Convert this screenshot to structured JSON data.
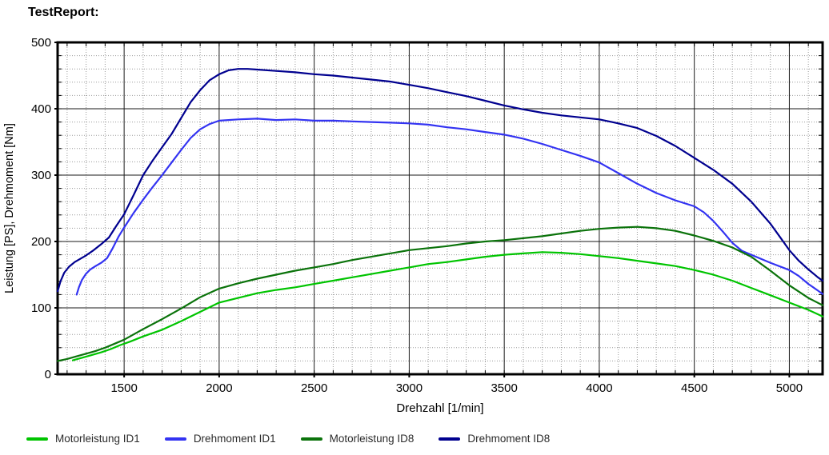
{
  "page": {
    "title": "TestReport:"
  },
  "chart_data": {
    "type": "line",
    "title": "TestReport:",
    "xlabel": "Drehzahl [1/min]",
    "ylabel": "Leistung [PS], Drehmoment [Nm]",
    "xlim": [
      1150,
      5175
    ],
    "ylim": [
      0,
      500
    ],
    "x_major_ticks": [
      1500,
      2000,
      2500,
      3000,
      3500,
      4000,
      4500,
      5000
    ],
    "x_minor_step": 100,
    "y_major_ticks": [
      0,
      100,
      200,
      300,
      400,
      500
    ],
    "y_minor_step": 20,
    "grid": {
      "major": "solid",
      "minor": "dotted"
    },
    "legend_position": "bottom",
    "frame_color": "#000000",
    "major_grid_color": "#1a1a1a",
    "minor_grid_color": "#999999",
    "series": [
      {
        "name": "Motorleistung ID1",
        "color": "#00c400",
        "points": [
          [
            1230,
            21
          ],
          [
            1280,
            25
          ],
          [
            1330,
            29
          ],
          [
            1380,
            33
          ],
          [
            1430,
            38
          ],
          [
            1480,
            44
          ],
          [
            1530,
            49
          ],
          [
            1600,
            57
          ],
          [
            1700,
            67
          ],
          [
            1800,
            80
          ],
          [
            1900,
            94
          ],
          [
            2000,
            108
          ],
          [
            2100,
            115
          ],
          [
            2200,
            122
          ],
          [
            2300,
            127
          ],
          [
            2400,
            131
          ],
          [
            2500,
            136
          ],
          [
            2600,
            141
          ],
          [
            2700,
            146
          ],
          [
            2800,
            151
          ],
          [
            2900,
            156
          ],
          [
            3000,
            161
          ],
          [
            3100,
            166
          ],
          [
            3200,
            169
          ],
          [
            3300,
            173
          ],
          [
            3400,
            177
          ],
          [
            3500,
            180
          ],
          [
            3600,
            182
          ],
          [
            3700,
            184
          ],
          [
            3800,
            183
          ],
          [
            3900,
            181
          ],
          [
            4000,
            178
          ],
          [
            4100,
            175
          ],
          [
            4200,
            171
          ],
          [
            4300,
            167
          ],
          [
            4400,
            163
          ],
          [
            4500,
            157
          ],
          [
            4600,
            150
          ],
          [
            4700,
            141
          ],
          [
            4800,
            130
          ],
          [
            4900,
            119
          ],
          [
            5000,
            108
          ],
          [
            5100,
            97
          ],
          [
            5175,
            87
          ]
        ]
      },
      {
        "name": "Drehmoment ID1",
        "color": "#3333f2",
        "points": [
          [
            1250,
            120
          ],
          [
            1262,
            131
          ],
          [
            1278,
            142
          ],
          [
            1298,
            151
          ],
          [
            1322,
            158
          ],
          [
            1350,
            163
          ],
          [
            1380,
            168
          ],
          [
            1410,
            175
          ],
          [
            1440,
            190
          ],
          [
            1470,
            207
          ],
          [
            1500,
            221
          ],
          [
            1550,
            243
          ],
          [
            1600,
            263
          ],
          [
            1650,
            282
          ],
          [
            1700,
            300
          ],
          [
            1750,
            319
          ],
          [
            1800,
            338
          ],
          [
            1850,
            356
          ],
          [
            1900,
            369
          ],
          [
            1950,
            377
          ],
          [
            2000,
            382
          ],
          [
            2100,
            384
          ],
          [
            2200,
            385
          ],
          [
            2300,
            383
          ],
          [
            2400,
            384
          ],
          [
            2500,
            382
          ],
          [
            2600,
            382
          ],
          [
            2700,
            381
          ],
          [
            2800,
            380
          ],
          [
            2900,
            379
          ],
          [
            3000,
            378
          ],
          [
            3100,
            376
          ],
          [
            3200,
            372
          ],
          [
            3300,
            369
          ],
          [
            3400,
            365
          ],
          [
            3500,
            361
          ],
          [
            3600,
            355
          ],
          [
            3700,
            347
          ],
          [
            3800,
            338
          ],
          [
            3900,
            329
          ],
          [
            4000,
            319
          ],
          [
            4100,
            303
          ],
          [
            4200,
            287
          ],
          [
            4300,
            273
          ],
          [
            4400,
            262
          ],
          [
            4500,
            253
          ],
          [
            4550,
            244
          ],
          [
            4600,
            231
          ],
          [
            4650,
            215
          ],
          [
            4700,
            198
          ],
          [
            4750,
            186
          ],
          [
            4800,
            180
          ],
          [
            4900,
            168
          ],
          [
            5000,
            157
          ],
          [
            5050,
            148
          ],
          [
            5100,
            136
          ],
          [
            5150,
            126
          ],
          [
            5175,
            121
          ]
        ]
      },
      {
        "name": "Motorleistung ID8",
        "color": "#0b730b",
        "points": [
          [
            1150,
            20
          ],
          [
            1200,
            23
          ],
          [
            1250,
            27
          ],
          [
            1300,
            31
          ],
          [
            1350,
            35
          ],
          [
            1400,
            40
          ],
          [
            1450,
            46
          ],
          [
            1500,
            52
          ],
          [
            1600,
            68
          ],
          [
            1700,
            83
          ],
          [
            1800,
            99
          ],
          [
            1900,
            116
          ],
          [
            2000,
            129
          ],
          [
            2100,
            137
          ],
          [
            2200,
            144
          ],
          [
            2300,
            150
          ],
          [
            2400,
            156
          ],
          [
            2500,
            161
          ],
          [
            2600,
            166
          ],
          [
            2700,
            172
          ],
          [
            2800,
            177
          ],
          [
            2900,
            182
          ],
          [
            3000,
            187
          ],
          [
            3100,
            190
          ],
          [
            3200,
            193
          ],
          [
            3300,
            197
          ],
          [
            3400,
            200
          ],
          [
            3500,
            202
          ],
          [
            3600,
            205
          ],
          [
            3700,
            208
          ],
          [
            3800,
            212
          ],
          [
            3900,
            216
          ],
          [
            4000,
            219
          ],
          [
            4100,
            221
          ],
          [
            4200,
            222
          ],
          [
            4300,
            220
          ],
          [
            4400,
            216
          ],
          [
            4500,
            209
          ],
          [
            4600,
            201
          ],
          [
            4700,
            191
          ],
          [
            4800,
            177
          ],
          [
            4900,
            156
          ],
          [
            5000,
            134
          ],
          [
            5100,
            115
          ],
          [
            5175,
            104
          ]
        ]
      },
      {
        "name": "Drehmoment ID8",
        "color": "#00008f",
        "points": [
          [
            1150,
            125
          ],
          [
            1165,
            140
          ],
          [
            1185,
            153
          ],
          [
            1210,
            162
          ],
          [
            1240,
            169
          ],
          [
            1270,
            174
          ],
          [
            1300,
            179
          ],
          [
            1340,
            187
          ],
          [
            1380,
            196
          ],
          [
            1420,
            206
          ],
          [
            1460,
            224
          ],
          [
            1500,
            241
          ],
          [
            1550,
            270
          ],
          [
            1600,
            300
          ],
          [
            1650,
            322
          ],
          [
            1700,
            342
          ],
          [
            1750,
            362
          ],
          [
            1800,
            386
          ],
          [
            1850,
            410
          ],
          [
            1900,
            428
          ],
          [
            1950,
            443
          ],
          [
            2000,
            452
          ],
          [
            2050,
            458
          ],
          [
            2100,
            460
          ],
          [
            2150,
            460
          ],
          [
            2200,
            459
          ],
          [
            2300,
            457
          ],
          [
            2400,
            455
          ],
          [
            2500,
            452
          ],
          [
            2600,
            450
          ],
          [
            2700,
            447
          ],
          [
            2800,
            444
          ],
          [
            2900,
            441
          ],
          [
            3000,
            436
          ],
          [
            3100,
            431
          ],
          [
            3200,
            425
          ],
          [
            3300,
            419
          ],
          [
            3400,
            412
          ],
          [
            3500,
            405
          ],
          [
            3600,
            399
          ],
          [
            3700,
            394
          ],
          [
            3800,
            390
          ],
          [
            3900,
            387
          ],
          [
            4000,
            384
          ],
          [
            4100,
            378
          ],
          [
            4200,
            371
          ],
          [
            4300,
            359
          ],
          [
            4400,
            344
          ],
          [
            4500,
            326
          ],
          [
            4600,
            308
          ],
          [
            4700,
            287
          ],
          [
            4800,
            260
          ],
          [
            4900,
            227
          ],
          [
            4950,
            207
          ],
          [
            5000,
            187
          ],
          [
            5050,
            171
          ],
          [
            5100,
            158
          ],
          [
            5150,
            146
          ],
          [
            5175,
            141
          ]
        ]
      }
    ]
  }
}
